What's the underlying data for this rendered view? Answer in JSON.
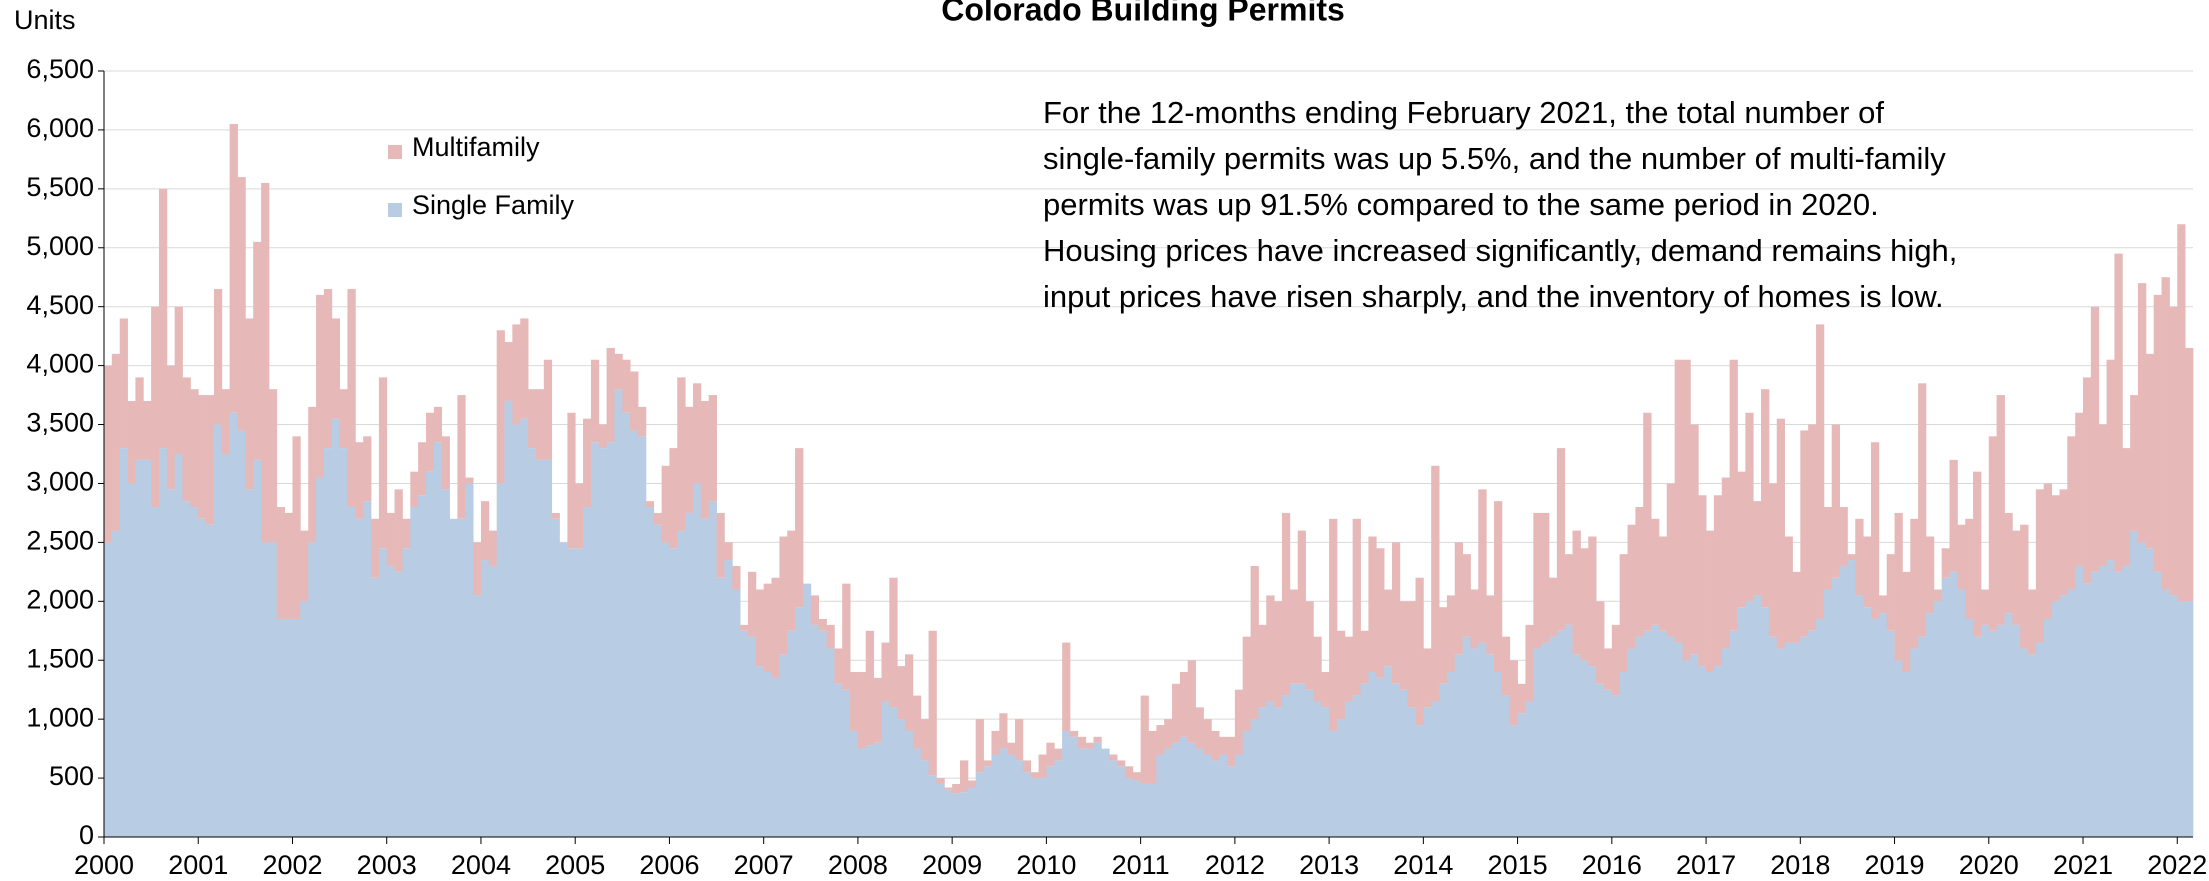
{
  "chart_data": {
    "type": "stacked_bar",
    "title": "Colorado Building Permits",
    "y_label": "Units",
    "annotation": [
      "For the 12-months ending February 2021, the total number of",
      "single-family permits was up 5.5%, and the number of multi-family",
      "permits was up 91.5% compared to the same period in 2020.",
      "Housing prices have increased significantly, demand remains high,",
      "input prices have risen sharply, and the inventory of homes is low."
    ],
    "legend": "upper left",
    "grid": true,
    "xlim": [
      2000,
      2022.167
    ],
    "xticks": [
      2000,
      2001,
      2002,
      2003,
      2004,
      2005,
      2006,
      2007,
      2008,
      2009,
      2010,
      2011,
      2012,
      2013,
      2014,
      2015,
      2016,
      2017,
      2018,
      2019,
      2020,
      2021,
      2022
    ],
    "ylim": [
      0,
      6500
    ],
    "yticks": [
      0,
      500,
      {
        "value": 1000,
        "label": "1,000"
      },
      {
        "value": 1500,
        "label": "1,500"
      },
      {
        "value": 2000,
        "label": "2,000"
      },
      {
        "value": 2500,
        "label": "2,500"
      },
      {
        "value": 3000,
        "label": "3,000"
      },
      {
        "value": 3500,
        "label": "3,500"
      },
      {
        "value": 4000,
        "label": "4,000"
      },
      {
        "value": 4500,
        "label": "4,500"
      },
      {
        "value": 5000,
        "label": "5,000"
      },
      {
        "value": 5500,
        "label": "5,500"
      },
      {
        "value": 6000,
        "label": "6,000"
      },
      {
        "value": 6500,
        "label": "6,500"
      }
    ],
    "x": [
      2000,
      2000.083,
      2000.167,
      2000.25,
      2000.333,
      2000.417,
      2000.5,
      2000.583,
      2000.667,
      2000.75,
      2000.833,
      2000.917,
      2001,
      2001.083,
      2001.167,
      2001.25,
      2001.333,
      2001.417,
      2001.5,
      2001.583,
      2001.667,
      2001.75,
      2001.833,
      2001.917,
      2002,
      2002.083,
      2002.167,
      2002.25,
      2002.333,
      2002.417,
      2002.5,
      2002.583,
      2002.667,
      2002.75,
      2002.833,
      2002.917,
      2003,
      2003.083,
      2003.167,
      2003.25,
      2003.333,
      2003.417,
      2003.5,
      2003.583,
      2003.667,
      2003.75,
      2003.833,
      2003.917,
      2004,
      2004.083,
      2004.167,
      2004.25,
      2004.333,
      2004.417,
      2004.5,
      2004.583,
      2004.667,
      2004.75,
      2004.833,
      2004.917,
      2005,
      2005.083,
      2005.167,
      2005.25,
      2005.333,
      2005.417,
      2005.5,
      2005.583,
      2005.667,
      2005.75,
      2005.833,
      2005.917,
      2006,
      2006.083,
      2006.167,
      2006.25,
      2006.333,
      2006.417,
      2006.5,
      2006.583,
      2006.667,
      2006.75,
      2006.833,
      2006.917,
      2007,
      2007.083,
      2007.167,
      2007.25,
      2007.333,
      2007.417,
      2007.5,
      2007.583,
      2007.667,
      2007.75,
      2007.833,
      2007.917,
      2008,
      2008.083,
      2008.167,
      2008.25,
      2008.333,
      2008.417,
      2008.5,
      2008.583,
      2008.667,
      2008.75,
      2008.833,
      2008.917,
      2009,
      2009.083,
      2009.167,
      2009.25,
      2009.333,
      2009.417,
      2009.5,
      2009.583,
      2009.667,
      2009.75,
      2009.833,
      2009.917,
      2010,
      2010.083,
      2010.167,
      2010.25,
      2010.333,
      2010.417,
      2010.5,
      2010.583,
      2010.667,
      2010.75,
      2010.833,
      2010.917,
      2011,
      2011.083,
      2011.167,
      2011.25,
      2011.333,
      2011.417,
      2011.5,
      2011.583,
      2011.667,
      2011.75,
      2011.833,
      2011.917,
      2012,
      2012.083,
      2012.167,
      2012.25,
      2012.333,
      2012.417,
      2012.5,
      2012.583,
      2012.667,
      2012.75,
      2012.833,
      2012.917,
      2013,
      2013.083,
      2013.167,
      2013.25,
      2013.333,
      2013.417,
      2013.5,
      2013.583,
      2013.667,
      2013.75,
      2013.833,
      2013.917,
      2014,
      2014.083,
      2014.167,
      2014.25,
      2014.333,
      2014.417,
      2014.5,
      2014.583,
      2014.667,
      2014.75,
      2014.833,
      2014.917,
      2015,
      2015.083,
      2015.167,
      2015.25,
      2015.333,
      2015.417,
      2015.5,
      2015.583,
      2015.667,
      2015.75,
      2015.833,
      2015.917,
      2016,
      2016.083,
      2016.167,
      2016.25,
      2016.333,
      2016.417,
      2016.5,
      2016.583,
      2016.667,
      2016.75,
      2016.833,
      2016.917,
      2017,
      2017.083,
      2017.167,
      2017.25,
      2017.333,
      2017.417,
      2017.5,
      2017.583,
      2017.667,
      2017.75,
      2017.833,
      2017.917,
      2018,
      2018.083,
      2018.167,
      2018.25,
      2018.333,
      2018.417,
      2018.5,
      2018.583,
      2018.667,
      2018.75,
      2018.833,
      2018.917,
      2019,
      2019.083,
      2019.167,
      2019.25,
      2019.333,
      2019.417,
      2019.5,
      2019.583,
      2019.667,
      2019.75,
      2019.833,
      2019.917,
      2020,
      2020.083,
      2020.167,
      2020.25,
      2020.333,
      2020.417,
      2020.5,
      2020.583,
      2020.667,
      2020.75,
      2020.833,
      2020.917,
      2021,
      2021.083,
      2021.167,
      2021.25,
      2021.333,
      2021.417,
      2021.5,
      2021.583,
      2021.667,
      2021.75,
      2021.833,
      2021.917,
      2022,
      2022.083
    ],
    "series": [
      {
        "name": "Single Family",
        "color": "#b8cce4",
        "values": [
          2500,
          2600,
          3300,
          3000,
          3200,
          3200,
          2800,
          3300,
          2950,
          3250,
          2850,
          2800,
          2700,
          2650,
          3500,
          3250,
          3600,
          3450,
          2950,
          3200,
          2500,
          2500,
          1850,
          1850,
          1850,
          2000,
          2500,
          3050,
          3300,
          3550,
          3300,
          2800,
          2700,
          2850,
          2200,
          2450,
          2300,
          2250,
          2450,
          2800,
          2900,
          3100,
          3350,
          2950,
          2700,
          2700,
          3000,
          2050,
          2350,
          2300,
          3000,
          3700,
          3500,
          3550,
          3300,
          3200,
          3200,
          2700,
          2500,
          2450,
          2450,
          2800,
          3350,
          3300,
          3350,
          3800,
          3600,
          3450,
          3400,
          2800,
          2650,
          2500,
          2450,
          2600,
          2750,
          3000,
          2700,
          2850,
          2200,
          2350,
          2100,
          1750,
          1700,
          1450,
          1400,
          1350,
          1550,
          1750,
          1950,
          2150,
          1800,
          1750,
          1600,
          1300,
          1250,
          900,
          750,
          780,
          800,
          1150,
          1100,
          1000,
          900,
          750,
          650,
          520,
          450,
          400,
          370,
          380,
          420,
          550,
          600,
          700,
          750,
          700,
          650,
          550,
          500,
          500,
          600,
          650,
          900,
          850,
          750,
          750,
          800,
          750,
          650,
          600,
          500,
          480,
          450,
          450,
          700,
          750,
          800,
          850,
          800,
          750,
          700,
          650,
          700,
          600,
          700,
          900,
          1000,
          1100,
          1150,
          1100,
          1200,
          1300,
          1300,
          1250,
          1150,
          1100,
          900,
          1000,
          1150,
          1200,
          1300,
          1400,
          1350,
          1450,
          1300,
          1250,
          1100,
          950,
          1100,
          1150,
          1300,
          1400,
          1550,
          1700,
          1600,
          1650,
          1550,
          1400,
          1200,
          950,
          1050,
          1150,
          1600,
          1650,
          1700,
          1750,
          1800,
          1550,
          1500,
          1450,
          1300,
          1250,
          1200,
          1400,
          1600,
          1700,
          1750,
          1800,
          1750,
          1700,
          1650,
          1500,
          1550,
          1450,
          1400,
          1450,
          1600,
          1750,
          1950,
          2000,
          2050,
          1950,
          1700,
          1600,
          1650,
          1650,
          1700,
          1750,
          1850,
          2100,
          2200,
          2300,
          2350,
          2050,
          1950,
          1850,
          1900,
          1750,
          1500,
          1400,
          1600,
          1700,
          1900,
          2000,
          2200,
          2250,
          2100,
          1850,
          1700,
          1800,
          1750,
          1800,
          1900,
          1800,
          1600,
          1550,
          1650,
          1850,
          2000,
          2050,
          2100,
          2300,
          2150,
          2250,
          2300,
          2350,
          2250,
          2300,
          2600,
          2500,
          2450,
          2250,
          2100,
          2050,
          2000,
          2000
        ]
      },
      {
        "name": "Multifamily",
        "color": "#e6b9b8",
        "values": [
          1500,
          1500,
          1100,
          700,
          700,
          500,
          1700,
          2200,
          1050,
          1250,
          1050,
          1000,
          1050,
          1100,
          1150,
          550,
          2450,
          2150,
          1450,
          1850,
          3050,
          1300,
          950,
          900,
          1550,
          600,
          1150,
          1550,
          1350,
          850,
          500,
          1850,
          650,
          550,
          500,
          1450,
          450,
          700,
          250,
          300,
          450,
          500,
          300,
          450,
          0,
          1050,
          50,
          450,
          500,
          300,
          1300,
          500,
          850,
          850,
          500,
          600,
          850,
          50,
          0,
          1150,
          550,
          750,
          700,
          200,
          800,
          300,
          450,
          500,
          250,
          50,
          100,
          650,
          850,
          1300,
          900,
          850,
          1000,
          900,
          550,
          150,
          200,
          50,
          550,
          650,
          750,
          850,
          1000,
          850,
          1350,
          0,
          250,
          100,
          200,
          300,
          900,
          500,
          650,
          970,
          550,
          500,
          1100,
          450,
          650,
          450,
          350,
          1230,
          50,
          20,
          80,
          270,
          60,
          450,
          50,
          200,
          300,
          100,
          350,
          100,
          50,
          200,
          200,
          100,
          750,
          50,
          100,
          50,
          50,
          0,
          50,
          50,
          100,
          70,
          750,
          450,
          250,
          250,
          500,
          550,
          700,
          350,
          300,
          250,
          150,
          250,
          550,
          800,
          1300,
          700,
          900,
          900,
          1550,
          800,
          1300,
          750,
          550,
          300,
          1800,
          750,
          550,
          1500,
          450,
          1150,
          1100,
          650,
          1200,
          750,
          900,
          1250,
          500,
          2000,
          650,
          650,
          950,
          700,
          500,
          1300,
          500,
          1450,
          500,
          550,
          250,
          650,
          1150,
          1100,
          500,
          1550,
          600,
          1050,
          950,
          1100,
          700,
          350,
          600,
          1000,
          1050,
          1100,
          1850,
          900,
          800,
          1300,
          2400,
          2550,
          1950,
          1450,
          1200,
          1450,
          1450,
          2300,
          1150,
          1600,
          800,
          1850,
          1300,
          1950,
          900,
          600,
          1750,
          1750,
          2500,
          700,
          1300,
          500,
          50,
          650,
          600,
          1500,
          150,
          650,
          1250,
          850,
          1100,
          2150,
          650,
          100,
          250,
          950,
          550,
          850,
          1400,
          300,
          1650,
          1950,
          850,
          800,
          1050,
          550,
          1300,
          1150,
          900,
          900,
          1300,
          1300,
          1750,
          2250,
          1200,
          1700,
          2700,
          1000,
          1150,
          2200,
          1650,
          2350,
          2650,
          2450,
          3200,
          2150
        ]
      }
    ]
  }
}
